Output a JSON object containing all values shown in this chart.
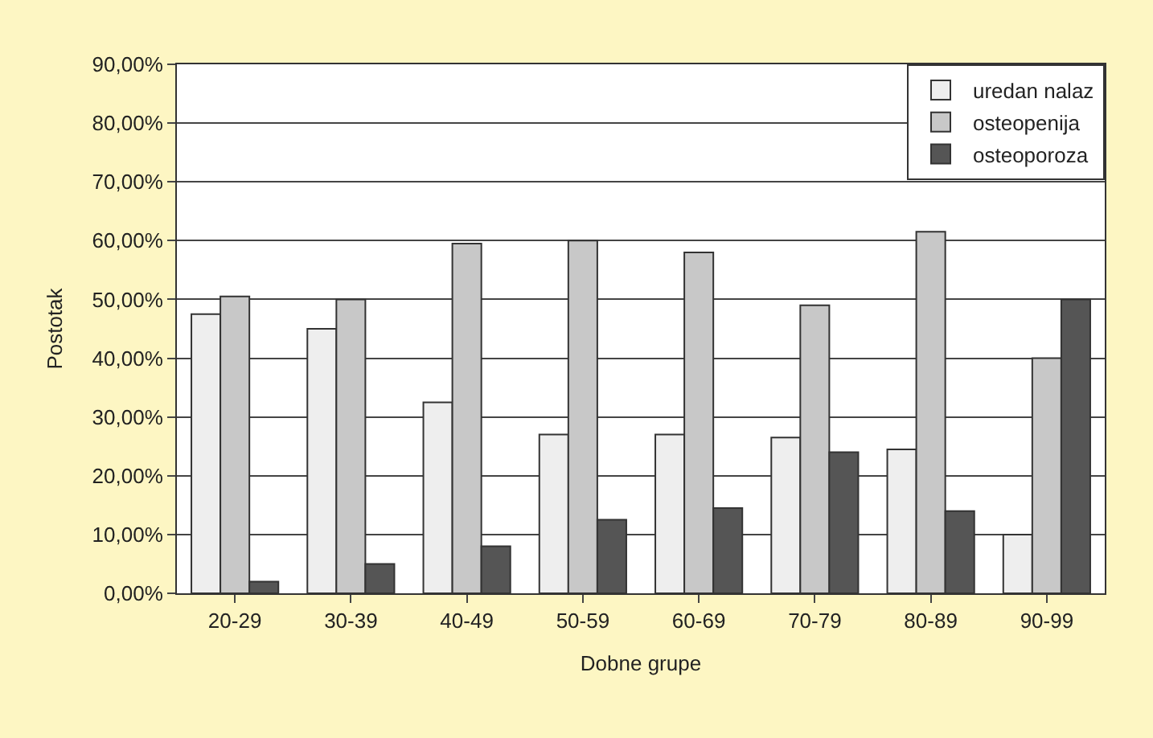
{
  "chart_data": {
    "type": "bar",
    "xlabel": "Dobne grupe",
    "ylabel": "Postotak",
    "categories": [
      "20-29",
      "30-39",
      "40-49",
      "50-59",
      "60-69",
      "70-79",
      "80-89",
      "90-99"
    ],
    "series": [
      {
        "name": "uredan nalaz",
        "color": "#eeeeee",
        "values": [
          47.5,
          45,
          32.5,
          27,
          27,
          26.5,
          24.5,
          10
        ]
      },
      {
        "name": "osteopenija",
        "color": "#c8c8c8",
        "values": [
          50.5,
          50,
          59.5,
          60,
          58,
          49,
          61.5,
          40
        ]
      },
      {
        "name": "osteoporoza",
        "color": "#555555",
        "values": [
          2,
          5,
          8,
          12.5,
          14.5,
          24,
          14,
          50
        ]
      }
    ],
    "ylim": [
      0,
      90
    ],
    "yticks": [
      {
        "value": 0,
        "label": "0,00%"
      },
      {
        "value": 10,
        "label": "10,00%"
      },
      {
        "value": 20,
        "label": "20,00%"
      },
      {
        "value": 30,
        "label": "30,00%"
      },
      {
        "value": 40,
        "label": "40,00%"
      },
      {
        "value": 50,
        "label": "50,00%"
      },
      {
        "value": 60,
        "label": "60,00%"
      },
      {
        "value": 70,
        "label": "70,00%"
      },
      {
        "value": 80,
        "label": "80,00%"
      },
      {
        "value": 90,
        "label": "90,00%"
      }
    ],
    "grid": "y",
    "legend": "top right"
  }
}
